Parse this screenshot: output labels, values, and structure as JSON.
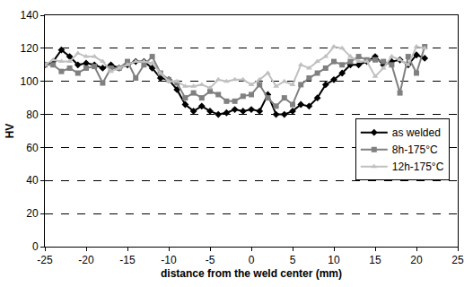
{
  "chart_data": {
    "type": "line",
    "x_label": "distance from the weld center (mm)",
    "y_label": "HV",
    "x": [
      -25,
      -24,
      -23,
      -22,
      -21,
      -20,
      -19,
      -18,
      -17,
      -16,
      -15,
      -14,
      -13,
      -12,
      -11,
      -10,
      -9,
      -8,
      -7,
      -6,
      -5,
      -4,
      -3,
      -2,
      -1,
      0,
      1,
      2,
      3,
      4,
      5,
      6,
      7,
      8,
      9,
      10,
      11,
      12,
      13,
      14,
      15,
      16,
      17,
      18,
      19,
      20,
      21
    ],
    "series": [
      {
        "name": "as welded",
        "color": "#000000",
        "marker": "diamond",
        "line_style": "solid",
        "values": [
          110,
          112,
          119,
          115,
          110,
          111,
          110,
          108,
          110,
          108,
          110,
          112,
          112,
          108,
          102,
          101,
          95,
          86,
          82,
          85,
          82,
          80,
          81,
          83,
          82,
          83,
          82,
          92,
          80,
          80,
          82,
          86,
          85,
          90,
          98,
          101,
          105,
          110,
          110,
          112,
          115,
          110,
          112,
          113,
          110,
          116,
          114
        ]
      },
      {
        "name": "8h-175°C",
        "color": "#808080",
        "marker": "square",
        "line_style": "solid",
        "values": [
          110,
          110,
          106,
          108,
          105,
          108,
          109,
          99,
          108,
          108,
          112,
          102,
          110,
          115,
          105,
          101,
          99,
          90,
          93,
          90,
          94,
          92,
          88,
          88,
          91,
          92,
          98,
          90,
          85,
          90,
          86,
          98,
          102,
          105,
          108,
          112,
          110,
          112,
          115,
          113,
          113,
          112,
          110,
          93,
          115,
          105,
          121
        ]
      },
      {
        "name": "12h-175°C",
        "color": "#c0c0c0",
        "marker": "triangle-up",
        "line_style": "solid",
        "values": [
          110,
          113,
          112,
          112,
          117,
          115,
          115,
          112,
          106,
          108,
          110,
          112,
          112,
          111,
          105,
          100,
          100,
          97,
          97,
          98,
          96,
          101,
          100,
          101,
          101,
          98,
          101,
          105,
          97,
          100,
          98,
          110,
          108,
          112,
          115,
          121,
          120,
          115,
          112,
          112,
          103,
          108,
          115,
          113,
          110,
          121,
          120
        ]
      }
    ],
    "xlim": [
      -25,
      25
    ],
    "xticks": [
      -25,
      -20,
      -15,
      -10,
      -5,
      0,
      5,
      10,
      15,
      20,
      25
    ],
    "ylim": [
      0,
      140
    ],
    "yticks": [
      0,
      20,
      40,
      60,
      80,
      100,
      120,
      140
    ],
    "grid": true,
    "legend": "right"
  }
}
